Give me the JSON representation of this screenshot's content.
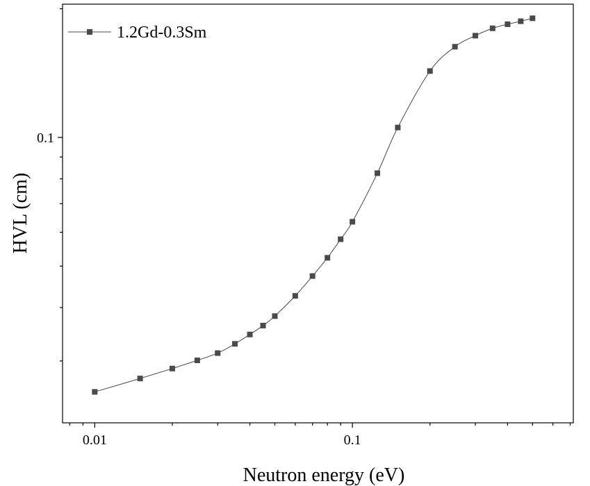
{
  "chart_data": {
    "type": "line",
    "xlabel": "Neutron energy (eV)",
    "ylabel": "HVL (cm)",
    "xscale": "log",
    "yscale": "log",
    "xlim": [
      0.0075,
      0.72
    ],
    "ylim": [
      0.0215,
      0.205
    ],
    "x_tick_labels": [
      {
        "value": 0.01,
        "label": "0.01"
      },
      {
        "value": 0.1,
        "label": "0.1"
      }
    ],
    "y_tick_labels": [
      {
        "value": 0.1,
        "label": "0.1"
      }
    ],
    "grid": false,
    "legend_position": "top-left",
    "series": [
      {
        "name": "1.2Gd-0.3Sm",
        "color": "#4a4a4a",
        "marker": "square",
        "x": [
          0.01,
          0.015,
          0.02,
          0.025,
          0.03,
          0.035,
          0.04,
          0.045,
          0.05,
          0.06,
          0.07,
          0.08,
          0.09,
          0.1,
          0.125,
          0.15,
          0.2,
          0.25,
          0.3,
          0.35,
          0.4,
          0.45,
          0.5
        ],
        "y": [
          0.0254,
          0.0273,
          0.0288,
          0.0301,
          0.0313,
          0.0329,
          0.0346,
          0.0363,
          0.0382,
          0.0426,
          0.0474,
          0.0523,
          0.0578,
          0.0635,
          0.0825,
          0.1055,
          0.143,
          0.163,
          0.173,
          0.18,
          0.184,
          0.187,
          0.19
        ]
      }
    ]
  }
}
